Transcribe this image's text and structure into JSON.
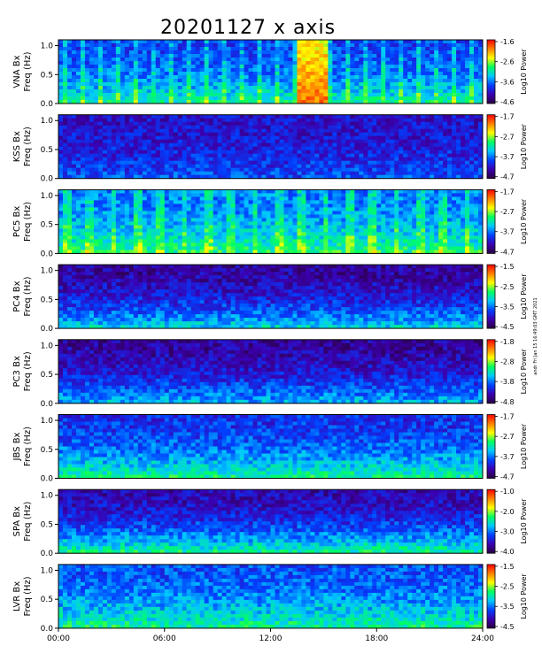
{
  "title": "20201127 x axis",
  "stamp": "andr Fri Jan 15 16:49:03 GMT 2021",
  "chart_data": {
    "type": "heatmap",
    "title": "20201127 x axis",
    "x_ticks": [
      "00:00",
      "06:00",
      "12:00",
      "18:00",
      "24:00"
    ],
    "xlim_hours": [
      0,
      24
    ],
    "y_ticks": [
      "0.0",
      "0.5",
      "1.0"
    ],
    "ylim_hz": [
      0,
      1.1
    ],
    "colorbar_label": "Log10 Power",
    "colormap": [
      "#2a0040",
      "#3b00b0",
      "#0040ff",
      "#00c8ff",
      "#00ff60",
      "#ffff00",
      "#ff8000",
      "#ff0000"
    ],
    "panels": [
      {
        "name": "VNA Bx",
        "ylabel": "Freq (Hz)",
        "cb_ticks": [
          "-1.6",
          "-2.6",
          "-3.6",
          "-4.6"
        ],
        "vmin": -4.6,
        "vmax": -1.6
      },
      {
        "name": "KSS Bx",
        "ylabel": "Freq (Hz)",
        "cb_ticks": [
          "-1.7",
          "-2.7",
          "-3.7",
          "-4.7"
        ],
        "vmin": -4.7,
        "vmax": -1.7
      },
      {
        "name": "PC5 Bx",
        "ylabel": "Freq (Hz)",
        "cb_ticks": [
          "-1.7",
          "-2.7",
          "-3.7",
          "-4.7"
        ],
        "vmin": -4.7,
        "vmax": -1.7
      },
      {
        "name": "PC4 Bx",
        "ylabel": "Freq (Hz)",
        "cb_ticks": [
          "-1.5",
          "-2.5",
          "-3.5",
          "-4.5"
        ],
        "vmin": -4.5,
        "vmax": -1.5
      },
      {
        "name": "PC3 Bx",
        "ylabel": "Freq (Hz)",
        "cb_ticks": [
          "-1.8",
          "-2.8",
          "-3.8",
          "-4.8"
        ],
        "vmin": -4.8,
        "vmax": -1.8
      },
      {
        "name": "JBS Bx",
        "ylabel": "Freq (Hz)",
        "cb_ticks": [
          "-1.7",
          "-2.7",
          "-3.7",
          "-4.7"
        ],
        "vmin": -4.7,
        "vmax": -1.7
      },
      {
        "name": "SPA Bx",
        "ylabel": "Freq (Hz)",
        "cb_ticks": [
          "-1.0",
          "-2.0",
          "-3.0",
          "-4.0"
        ],
        "vmin": -4.0,
        "vmax": -1.0
      },
      {
        "name": "LVR Bx",
        "ylabel": "Freq (Hz)",
        "cb_ticks": [
          "-1.5",
          "-2.5",
          "-3.5",
          "-4.5"
        ],
        "vmin": -4.5,
        "vmax": -1.5
      }
    ]
  }
}
